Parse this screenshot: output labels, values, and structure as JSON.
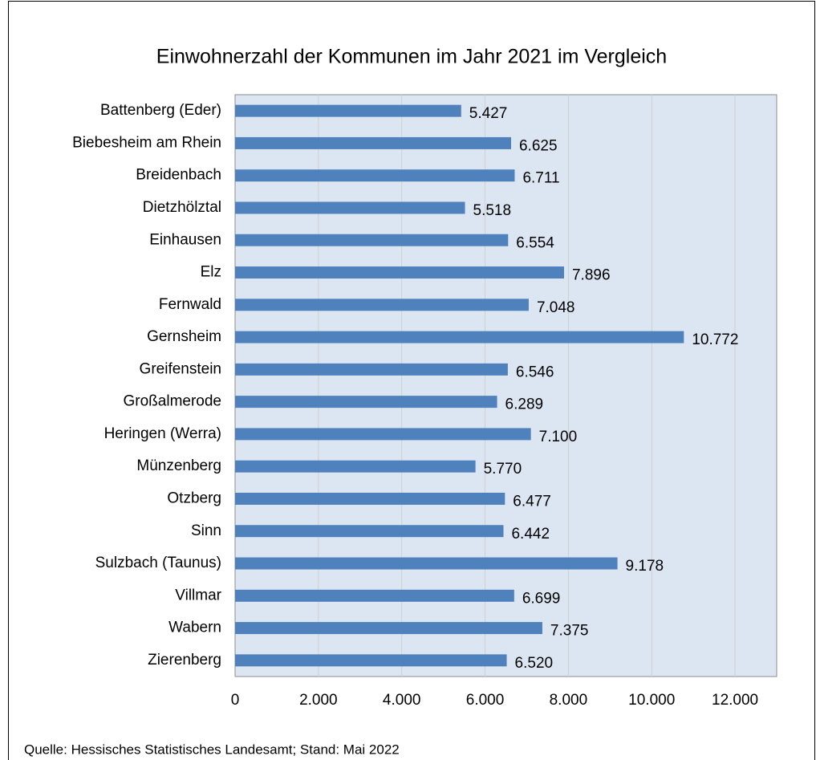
{
  "chart_data": {
    "type": "barh",
    "title": "Einwohnerzahl der Kommunen im Jahr 2021 im Vergleich",
    "categories": [
      "Battenberg (Eder)",
      "Biebesheim am Rhein",
      "Breidenbach",
      "Dietzhölztal",
      "Einhausen",
      "Elz",
      "Fernwald",
      "Gernsheim",
      "Greifenstein",
      "Großalmerode",
      "Heringen (Werra)",
      "Münzenberg",
      "Otzberg",
      "Sinn",
      "Sulzbach (Taunus)",
      "Villmar",
      "Wabern",
      "Zierenberg"
    ],
    "values": [
      5427,
      6625,
      6711,
      5518,
      6554,
      7896,
      7048,
      10772,
      6546,
      6289,
      7100,
      5770,
      6477,
      6442,
      9178,
      6699,
      7375,
      6520
    ],
    "value_labels": [
      "5.427",
      "6.625",
      "6.711",
      "5.518",
      "6.554",
      "7.896",
      "7.048",
      "10.772",
      "6.546",
      "6.289",
      "7.100",
      "5.770",
      "6.477",
      "6.442",
      "9.178",
      "6.699",
      "7.375",
      "6.520"
    ],
    "color": "#4f81bd",
    "xlim": [
      0,
      13000
    ],
    "xticks": [
      0,
      {
        "value": 2000,
        "label": "2.000"
      },
      {
        "value": 4000,
        "label": "4.000"
      },
      {
        "value": 6000,
        "label": "6.000"
      },
      {
        "value": 8000,
        "label": "8.000"
      },
      {
        "value": 10000,
        "label": "10.000"
      },
      {
        "value": 12000,
        "label": "12.000"
      }
    ],
    "grid": true,
    "source": "Quelle: Hessisches Statistisches Landesamt; Stand: Mai 2022"
  }
}
